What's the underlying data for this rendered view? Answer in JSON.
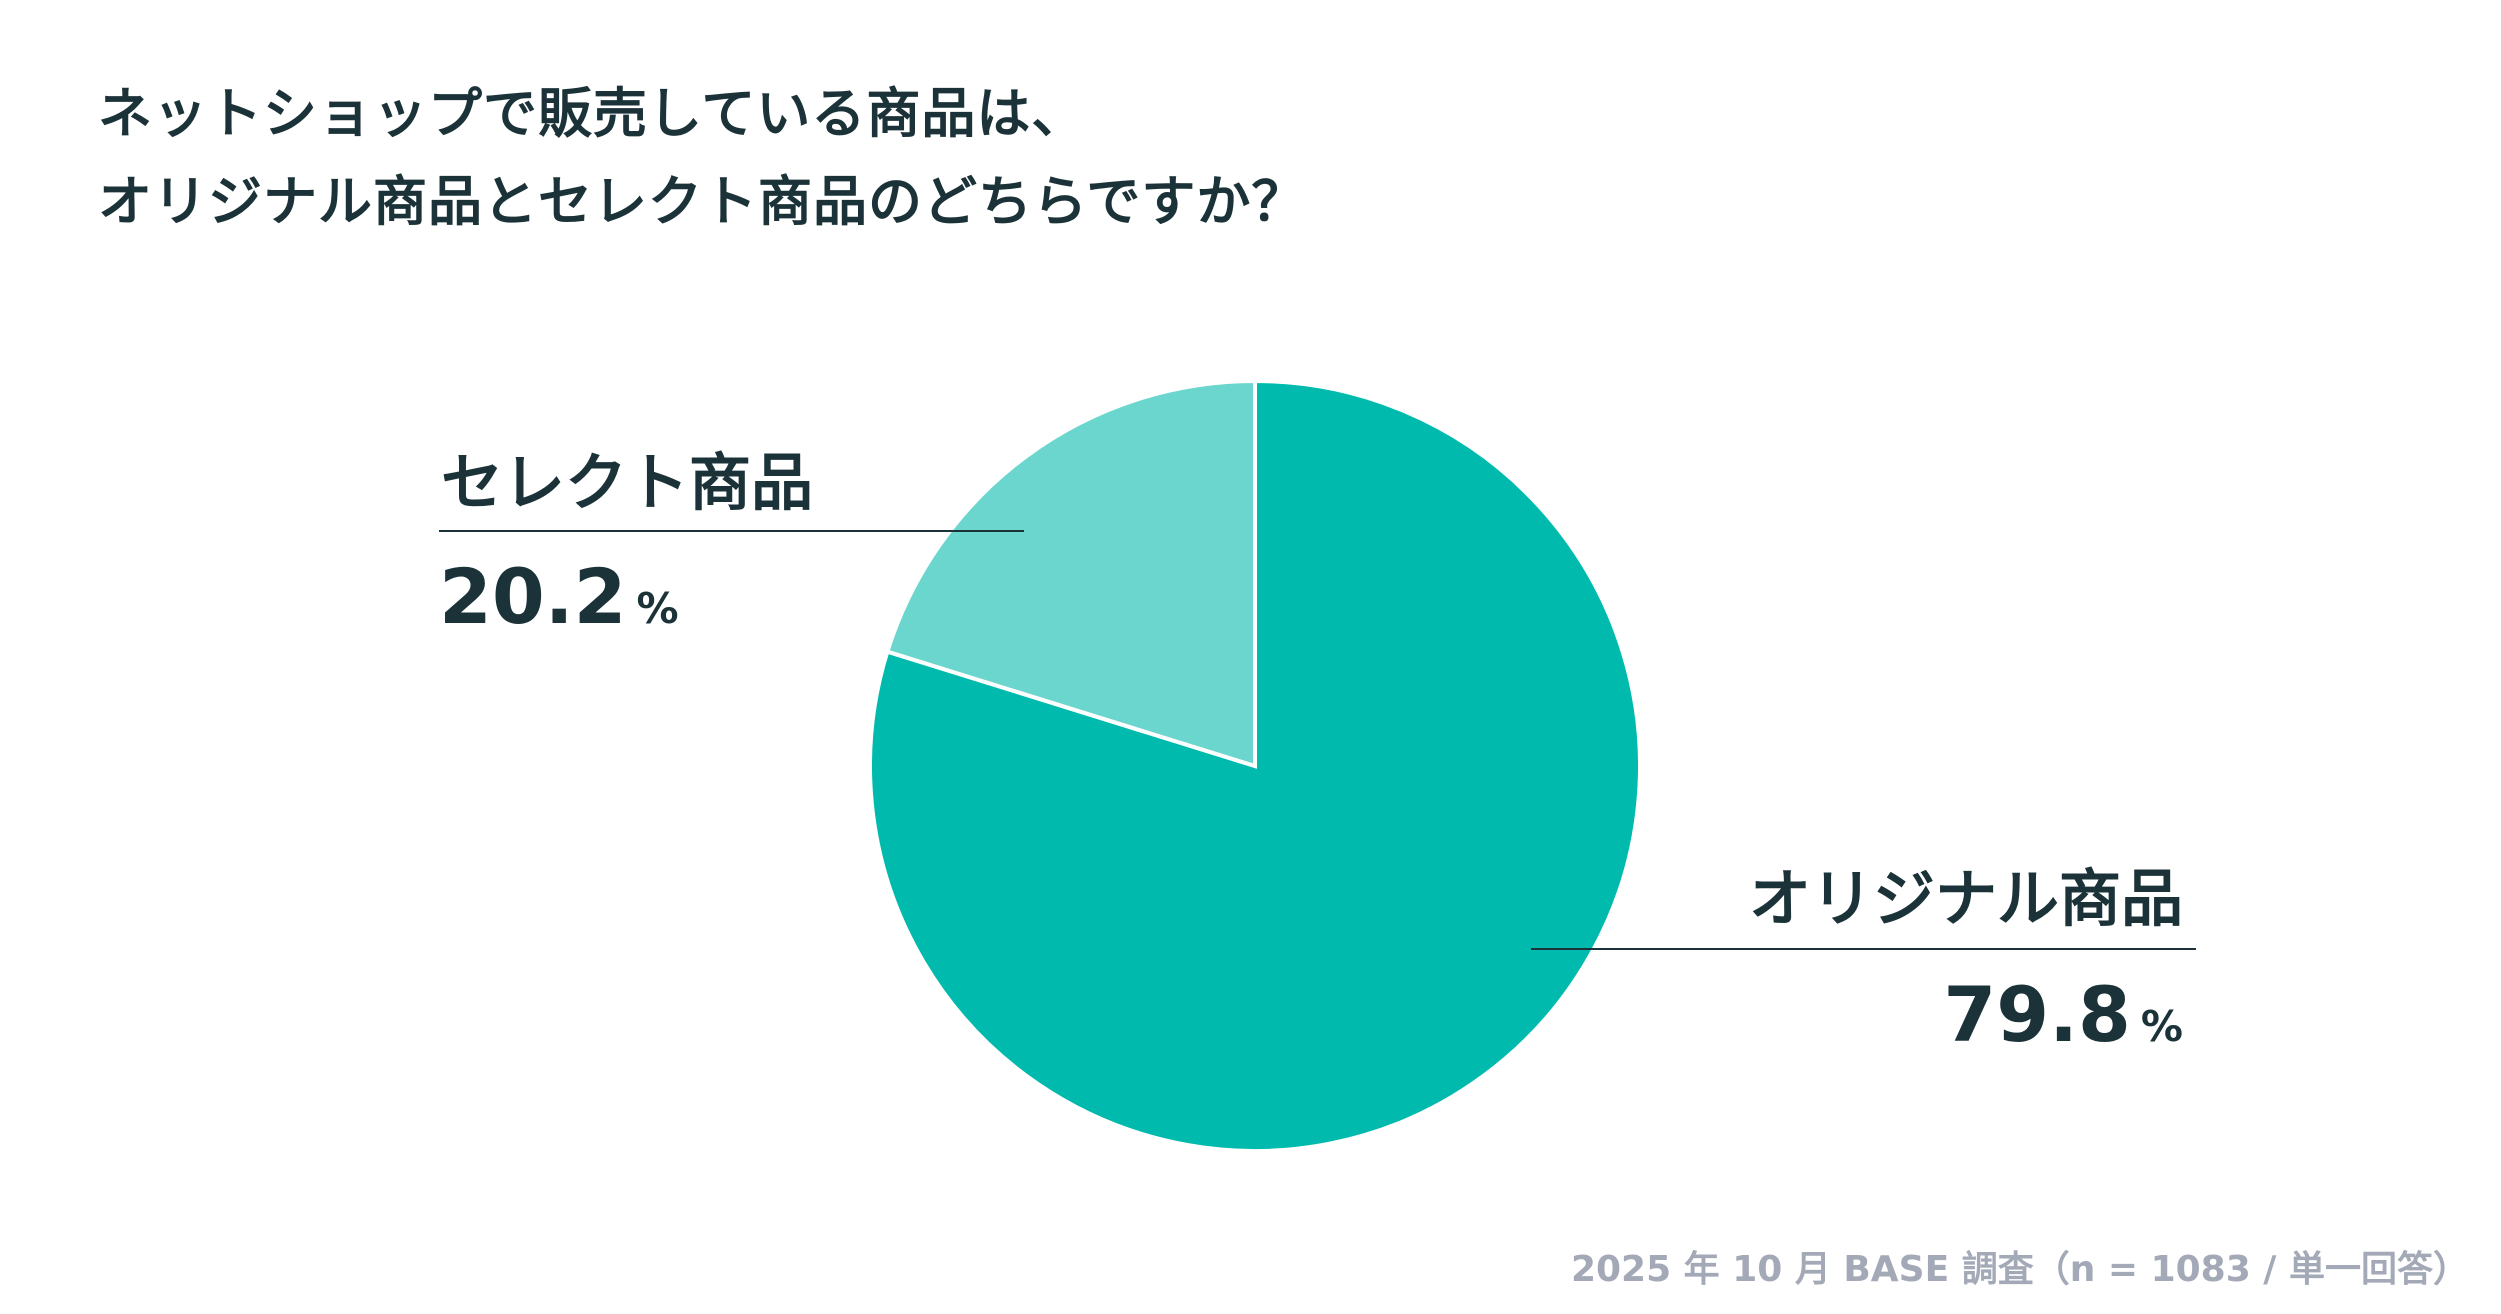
{
  "chart_data": {
    "type": "pie",
    "title_lines": [
      "ネットショップで販売している商品は、",
      "オリジナル商品とセレクト商品のどちらですか？"
    ],
    "slices": [
      {
        "label": "オリジナル商品",
        "value": 79.8,
        "value_text": "79.8",
        "color": "#00bbad"
      },
      {
        "label": "セレクト商品",
        "value": 20.2,
        "value_text": "20.2",
        "color": "#6ad6ce"
      }
    ],
    "unit": "%",
    "start_angle": "12 o'clock",
    "legend": "direct labels",
    "source": "2025 年 10 月 BASE 調査（n = 1083 / 単一回答）"
  }
}
